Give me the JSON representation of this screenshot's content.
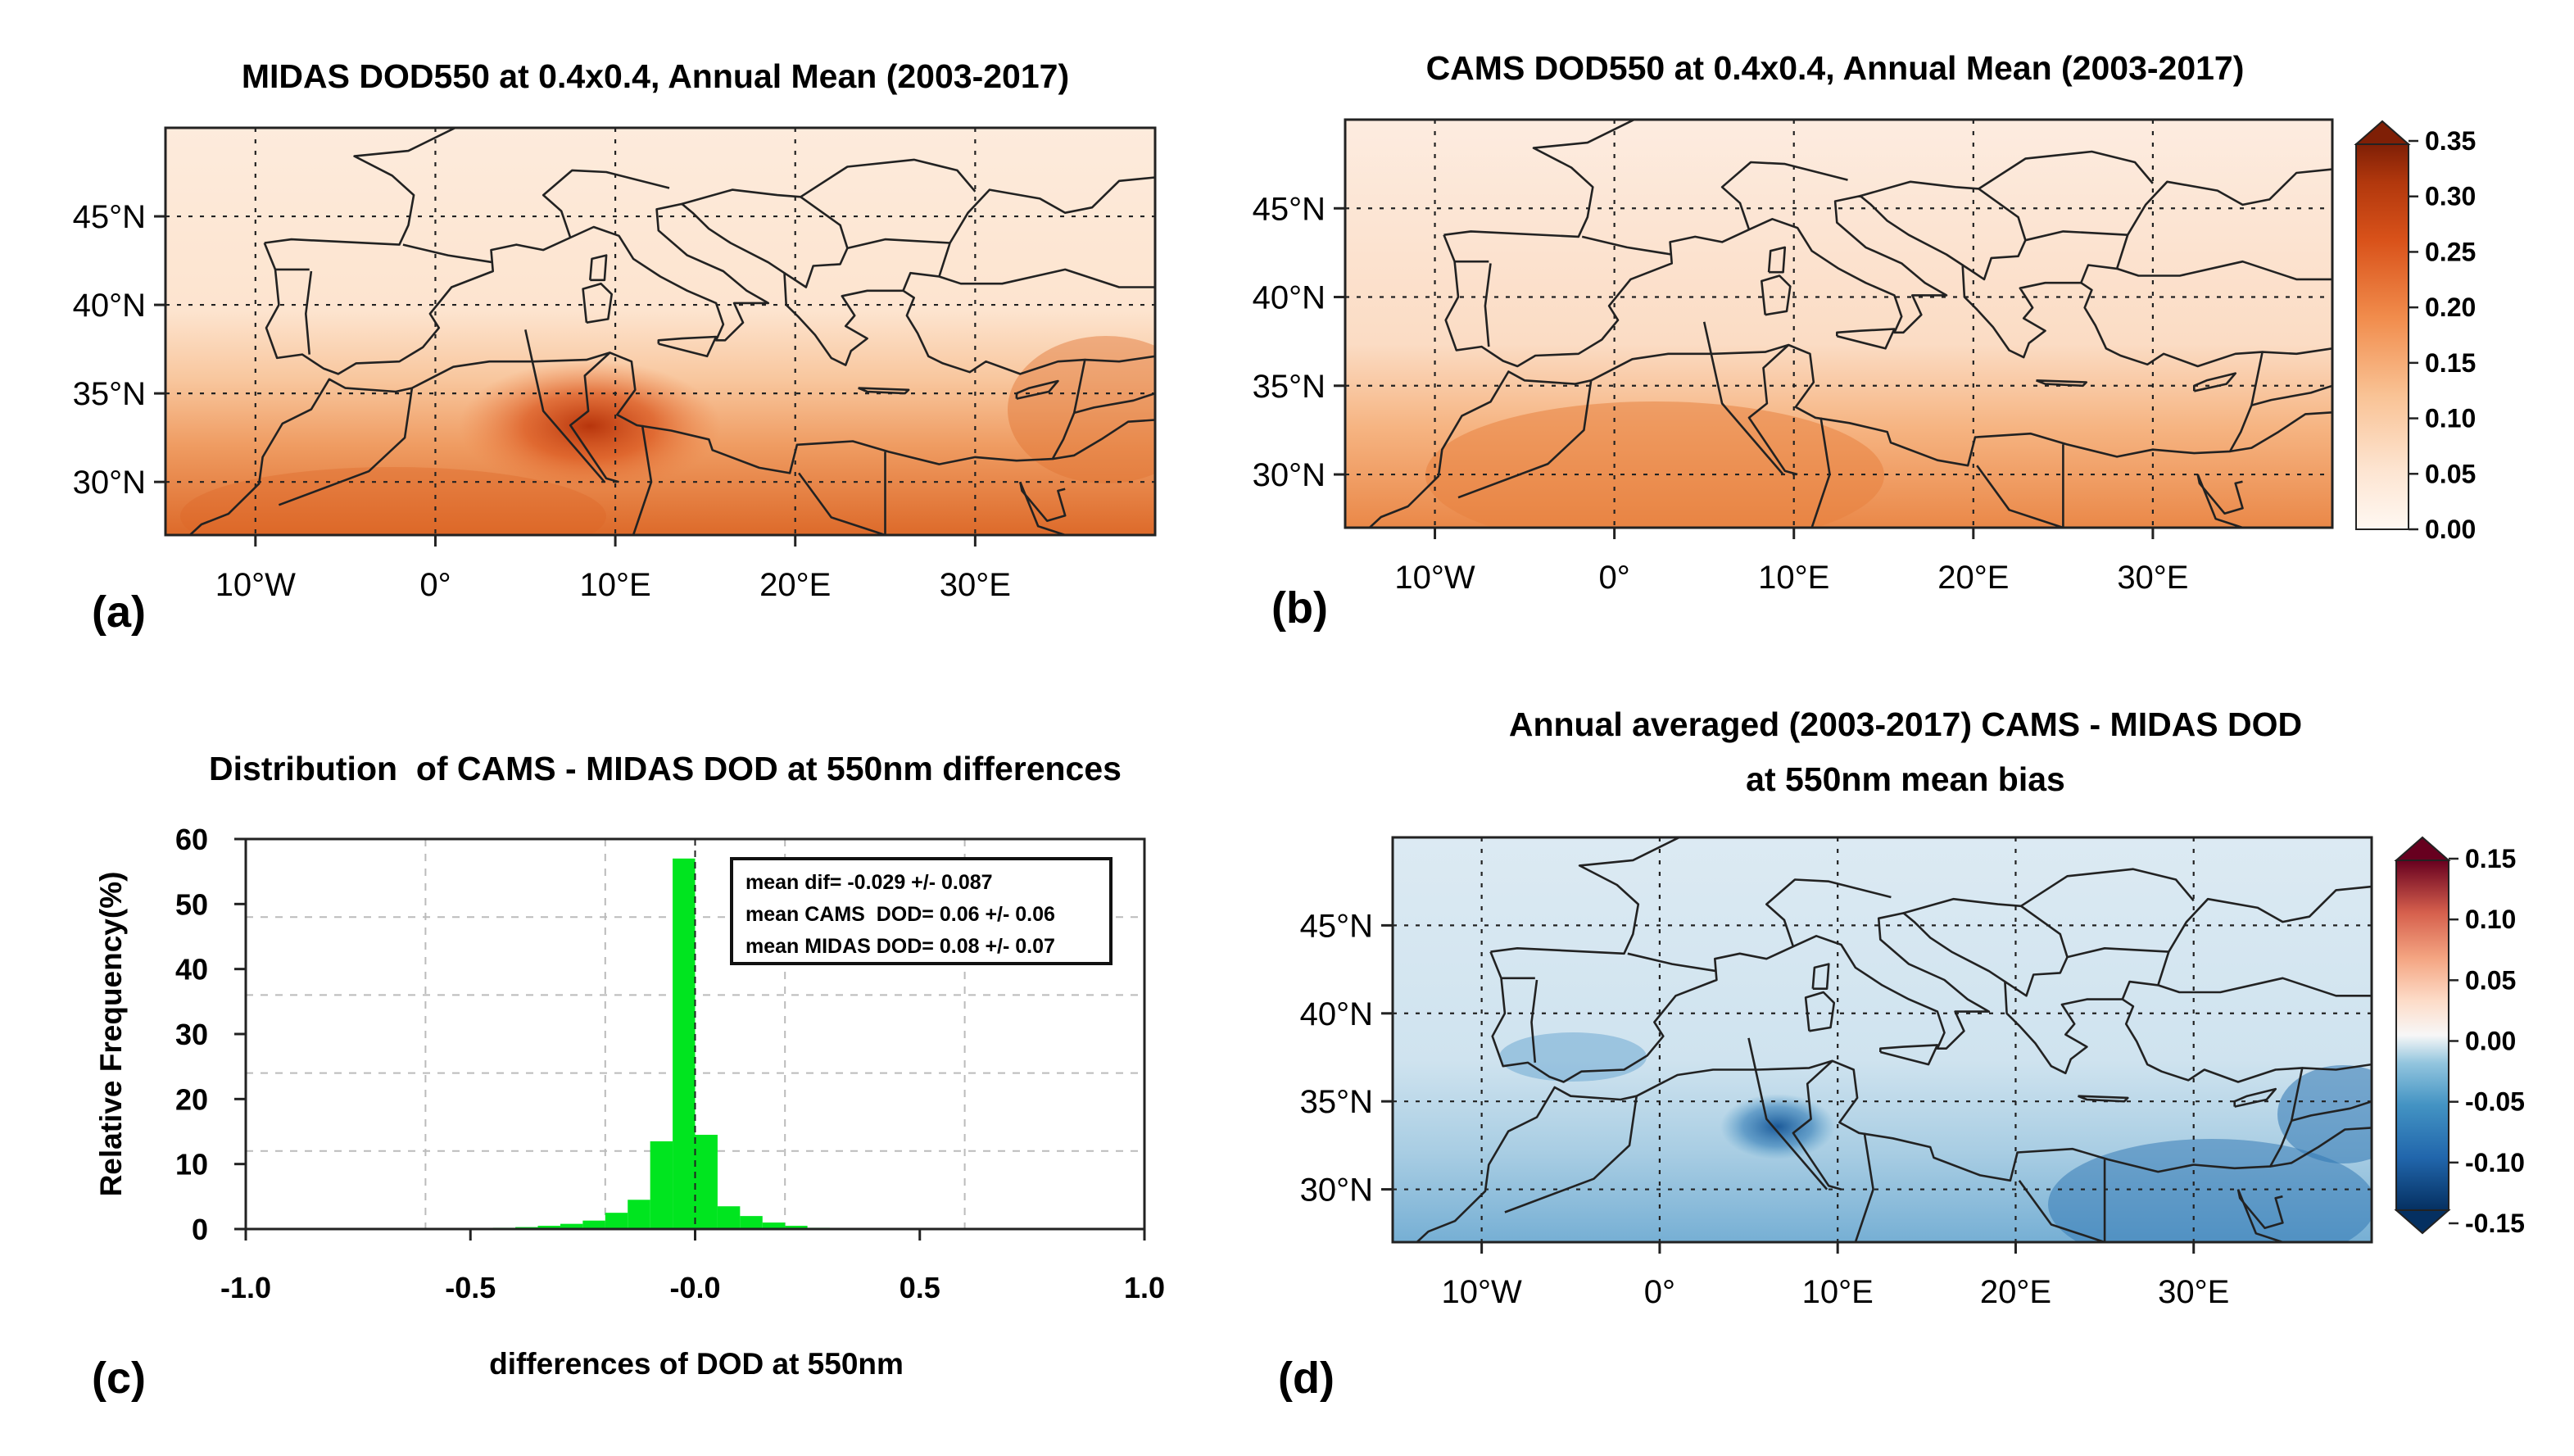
{
  "colors": {
    "dod_ramp": [
      "#fff6ef",
      "#fde5d2",
      "#fbcfab",
      "#f7a66f",
      "#ec7a3c",
      "#d9521a",
      "#b7350c",
      "#7f1f06"
    ],
    "bias_ramp": [
      "#053061",
      "#2166ac",
      "#4393c3",
      "#92c5de",
      "#d1e5f0",
      "#f7f7f7",
      "#fddbc7",
      "#f4a582",
      "#d6604d",
      "#b2182b",
      "#67001f"
    ],
    "histogram_bar": "#00e51f",
    "coast": "#222222",
    "grid": "#222222"
  },
  "map_extent": {
    "lon": [
      -15,
      40
    ],
    "lat": [
      27,
      50
    ]
  },
  "panels": {
    "a": {
      "label": "(a)",
      "title": "MIDAS DOD550 at 0.4x0.4, Annual Mean (2003-2017)",
      "lat_ticks": [
        {
          "lat": 45,
          "label": "45°N"
        },
        {
          "lat": 40,
          "label": "40°N"
        },
        {
          "lat": 35,
          "label": "35°N"
        },
        {
          "lat": 30,
          "label": "30°N"
        }
      ],
      "lon_ticks": [
        {
          "lon": -10,
          "label": "10°W"
        },
        {
          "lon": 0,
          "label": "0°"
        },
        {
          "lon": 10,
          "label": "10°E"
        },
        {
          "lon": 20,
          "label": "20°E"
        },
        {
          "lon": 30,
          "label": "30°E"
        }
      ]
    },
    "b": {
      "label": "(b)",
      "title": "CAMS DOD550 at 0.4x0.4, Annual Mean (2003-2017)",
      "lat_ticks": [
        {
          "lat": 45,
          "label": "45°N"
        },
        {
          "lat": 40,
          "label": "40°N"
        },
        {
          "lat": 35,
          "label": "35°N"
        },
        {
          "lat": 30,
          "label": "30°N"
        }
      ],
      "lon_ticks": [
        {
          "lon": -10,
          "label": "10°W"
        },
        {
          "lon": 0,
          "label": "0°"
        },
        {
          "lon": 10,
          "label": "10°E"
        },
        {
          "lon": 20,
          "label": "20°E"
        },
        {
          "lon": 30,
          "label": "30°E"
        }
      ],
      "colorbar": {
        "ticks": [
          "0.35",
          "0.30",
          "0.25",
          "0.20",
          "0.15",
          "0.10",
          "0.05",
          "0.00"
        ],
        "range": [
          0,
          0.35
        ]
      }
    },
    "c": {
      "label": "(c)"
    },
    "d": {
      "label": "(d)",
      "title_line1": "Annual averaged (2003-2017) CAMS - MIDAS DOD",
      "title_line2": "at 550nm mean bias",
      "lat_ticks": [
        {
          "lat": 45,
          "label": "45°N"
        },
        {
          "lat": 40,
          "label": "40°N"
        },
        {
          "lat": 35,
          "label": "35°N"
        },
        {
          "lat": 30,
          "label": "30°N"
        }
      ],
      "lon_ticks": [
        {
          "lon": -10,
          "label": "10°W"
        },
        {
          "lon": 0,
          "label": "0°"
        },
        {
          "lon": 10,
          "label": "10°E"
        },
        {
          "lon": 20,
          "label": "20°E"
        },
        {
          "lon": 30,
          "label": "30°E"
        }
      ],
      "colorbar": {
        "ticks": [
          "0.15",
          "0.10",
          "0.05",
          "0.00",
          "-0.05",
          "-0.10",
          "-0.15"
        ],
        "range": [
          -0.15,
          0.15
        ]
      }
    }
  },
  "chart_data": [
    {
      "type": "heatmap",
      "panel": "a",
      "title": "MIDAS DOD550 at 0.4x0.4, Annual Mean (2003-2017)",
      "x_range": [
        -15,
        40
      ],
      "y_range": [
        27,
        50
      ],
      "color_range": [
        0,
        0.35
      ],
      "xlabel": "",
      "ylabel": ""
    },
    {
      "type": "heatmap",
      "panel": "b",
      "title": "CAMS DOD550 at 0.4x0.4, Annual Mean (2003-2017)",
      "x_range": [
        -15,
        40
      ],
      "y_range": [
        27,
        50
      ],
      "color_range": [
        0,
        0.35
      ],
      "xlabel": "",
      "ylabel": ""
    },
    {
      "type": "bar",
      "panel": "c",
      "title": "Distribution  of CAMS - MIDAS DOD at 550nm differences",
      "xlabel": "differences of DOD at 550nm",
      "ylabel": "Relative Frequency(%)",
      "xlim": [
        -1.0,
        1.0
      ],
      "ylim": [
        0,
        60
      ],
      "x_ticks": [
        "-1.0",
        "-0.5",
        "-0.0",
        "0.5",
        "1.0"
      ],
      "y_ticks": [
        "0",
        "10",
        "20",
        "30",
        "40",
        "50",
        "60"
      ],
      "bin_width": 0.05,
      "bins": [
        {
          "x0": -0.5,
          "value": 0.1
        },
        {
          "x0": -0.45,
          "value": 0.2
        },
        {
          "x0": -0.4,
          "value": 0.3
        },
        {
          "x0": -0.35,
          "value": 0.5
        },
        {
          "x0": -0.3,
          "value": 0.8
        },
        {
          "x0": -0.25,
          "value": 1.3
        },
        {
          "x0": -0.2,
          "value": 2.5
        },
        {
          "x0": -0.15,
          "value": 4.5
        },
        {
          "x0": -0.1,
          "value": 13.5
        },
        {
          "x0": -0.05,
          "value": 57.0
        },
        {
          "x0": 0.0,
          "value": 14.5
        },
        {
          "x0": 0.05,
          "value": 3.5
        },
        {
          "x0": 0.1,
          "value": 2.0
        },
        {
          "x0": 0.15,
          "value": 1.0
        },
        {
          "x0": 0.2,
          "value": 0.5
        },
        {
          "x0": 0.25,
          "value": 0.2
        }
      ],
      "legend_box": [
        "mean dif= -0.029 +/- 0.087",
        "mean CAMS  DOD= 0.06 +/- 0.06",
        "mean MIDAS DOD= 0.08 +/- 0.07"
      ]
    },
    {
      "type": "heatmap",
      "panel": "d",
      "title": "Annual averaged (2003-2017) CAMS - MIDAS DOD at 550nm mean bias",
      "x_range": [
        -15,
        40
      ],
      "y_range": [
        27,
        50
      ],
      "color_range": [
        -0.15,
        0.15
      ],
      "xlabel": "",
      "ylabel": ""
    }
  ]
}
